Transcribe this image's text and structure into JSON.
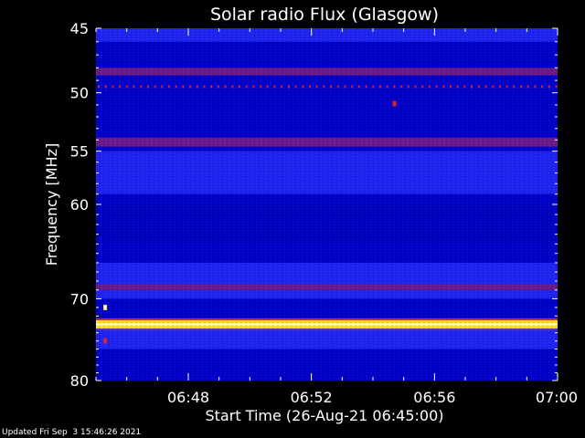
{
  "footer": {
    "updated": "Updated Fri Sep  3 15:46:26 2021"
  },
  "chart_data": {
    "type": "heatmap",
    "title": "Solar radio Flux (Glasgow)",
    "xlabel": "Start Time (26-Aug-21 06:45:00)",
    "ylabel": "Frequency [MHz]",
    "x_unit": "minutes after 06:45",
    "xlim": [
      0,
      15
    ],
    "ylim": [
      80,
      45
    ],
    "yscale": "log",
    "x_ticks": [
      {
        "value": 3,
        "label": "06:48"
      },
      {
        "value": 7,
        "label": "06:52"
      },
      {
        "value": 11,
        "label": "06:56"
      },
      {
        "value": 15,
        "label": "07:00"
      }
    ],
    "y_ticks": [
      45,
      50,
      55,
      60,
      70,
      80
    ],
    "colors": {
      "background": "#000000",
      "low": "#0000c0",
      "mid": "#2a30ff",
      "elevated": "#6a1a8a",
      "high": "#ffe200",
      "peak": "#ffffff"
    },
    "bands": [
      {
        "from_mhz": 45.0,
        "to_mhz": 46.0,
        "level": "mid"
      },
      {
        "from_mhz": 48.0,
        "to_mhz": 48.6,
        "level": "elevated"
      },
      {
        "from_mhz": 49.4,
        "to_mhz": 49.6,
        "level": "elevated",
        "dotted": true
      },
      {
        "from_mhz": 53.8,
        "to_mhz": 54.6,
        "level": "elevated"
      },
      {
        "from_mhz": 55.0,
        "to_mhz": 59.0,
        "level": "mid"
      },
      {
        "from_mhz": 60.0,
        "to_mhz": 64.0,
        "level": "low"
      },
      {
        "from_mhz": 66.0,
        "to_mhz": 70.0,
        "level": "mid"
      },
      {
        "from_mhz": 68.4,
        "to_mhz": 69.0,
        "level": "elevated"
      },
      {
        "from_mhz": 72.5,
        "to_mhz": 73.5,
        "level": "high"
      },
      {
        "from_mhz": 73.5,
        "to_mhz": 76.0,
        "level": "mid"
      }
    ],
    "spots": [
      {
        "x": 9.7,
        "freq_mhz": 50.9,
        "level": "elevated"
      },
      {
        "x": 0.3,
        "freq_mhz": 71.0,
        "level": "high"
      },
      {
        "x": 0.3,
        "freq_mhz": 75.0,
        "level": "elevated"
      }
    ]
  }
}
